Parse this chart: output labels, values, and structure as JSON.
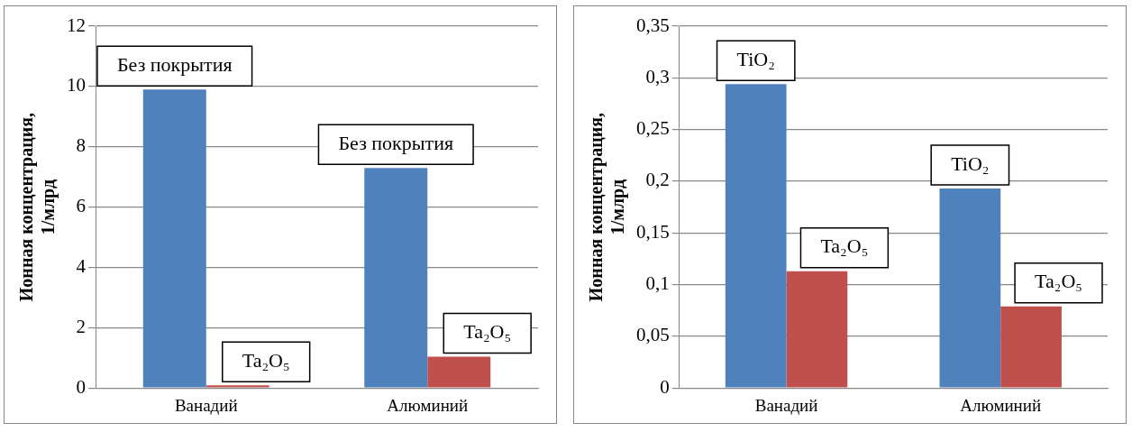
{
  "chart_data": [
    {
      "type": "bar",
      "ylabel": "Ионная концентрация,\n1/млрд",
      "categories": [
        "Ванадий",
        "Алюминий"
      ],
      "series": [
        {
          "name": "Без покрытия",
          "color": "#4f81bd",
          "values": [
            9.9,
            7.3
          ]
        },
        {
          "name": "Ta₂O₅",
          "color": "#c0504d",
          "values": [
            0.09,
            1.04
          ]
        }
      ],
      "ylim": [
        0,
        12
      ],
      "yticks": [
        0,
        2,
        4,
        6,
        8,
        10,
        12
      ],
      "grid": "y",
      "legend": false
    },
    {
      "type": "bar",
      "ylabel": "Ионная концентрация,\n1/млрд",
      "categories": [
        "Ванадий",
        "Алюминий"
      ],
      "series": [
        {
          "name": "TiO₂",
          "color": "#4f81bd",
          "values": [
            0.294,
            0.193
          ]
        },
        {
          "name": "Ta₂O₅",
          "color": "#c0504d",
          "values": [
            0.113,
            0.079
          ]
        }
      ],
      "ylim": [
        0,
        0.35
      ],
      "yticks": [
        0,
        {
          "value": 0.05,
          "label": "0,05"
        },
        {
          "value": 0.1,
          "label": "0,1"
        },
        {
          "value": 0.15,
          "label": "0,15"
        },
        {
          "value": 0.2,
          "label": "0,2"
        },
        {
          "value": 0.25,
          "label": "0,25"
        },
        {
          "value": 0.3,
          "label": "0,3"
        },
        {
          "value": 0.35,
          "label": "0,35"
        }
      ],
      "grid": "y",
      "legend": false
    }
  ]
}
